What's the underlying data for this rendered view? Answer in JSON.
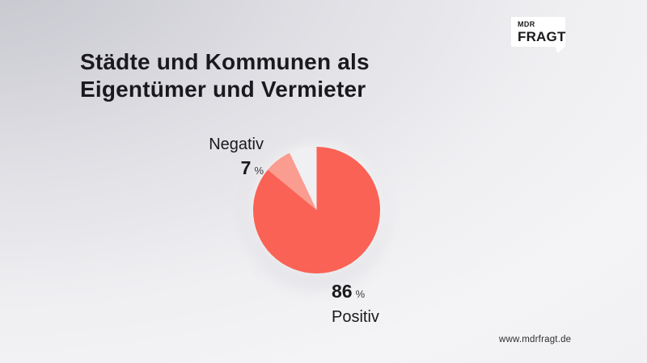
{
  "title": {
    "line1": "Städte und Kommunen als",
    "line2": "Eigentümer und Vermieter"
  },
  "logo": {
    "top": "MDR",
    "bottom": "FRAGT"
  },
  "footer": {
    "website": "www.mdrfragt.de"
  },
  "colors": {
    "positive_slice": "#fa6255",
    "negative_slice": "#fb9c91",
    "neutral_slice": "#f0f0f2",
    "text": "#1a1a1c",
    "background_dark_corner": "#c5c5cc",
    "background_light": "#f4f4f6",
    "logo_background": "#ffffff"
  },
  "chart_data": {
    "type": "pie",
    "title": "Städte und Kommunen als Eigentümer und Vermieter",
    "slices": [
      {
        "label": "Positiv",
        "value": 86,
        "unit": "%",
        "color": "#fa6255"
      },
      {
        "label": "Negativ",
        "value": 7,
        "unit": "%",
        "color": "#fb9c91"
      },
      {
        "label": "",
        "value": 7,
        "unit": "%",
        "color": "#f0f0f2"
      }
    ],
    "start_angle_deg": 0,
    "direction": "clockwise",
    "legend_position": "none",
    "labels_shown": [
      {
        "text": "Negativ",
        "value": "7",
        "unit": "%",
        "position": "upper-left"
      },
      {
        "text": "Positiv",
        "value": "86",
        "unit": "%",
        "position": "lower-right"
      }
    ]
  },
  "labels": {
    "negative": {
      "name": "Negativ",
      "value": "7",
      "unit": "%"
    },
    "positive": {
      "name": "Positiv",
      "value": "86",
      "unit": "%"
    }
  }
}
